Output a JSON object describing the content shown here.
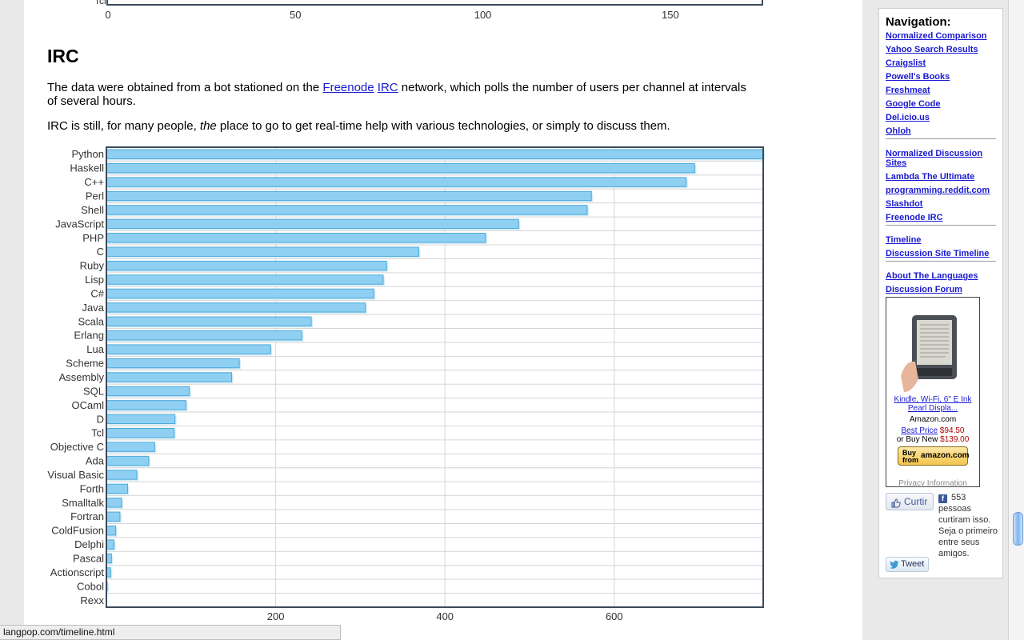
{
  "top_chart": {
    "cut_label": "Tcl",
    "ticks": [
      0,
      50,
      100,
      150
    ],
    "max": 175
  },
  "section": {
    "heading": "IRC",
    "para1_before": "The data were obtained from a bot stationed on the ",
    "link_freenode": "Freenode",
    "link_irc": "IRC",
    "para1_after": " network, which polls the number of users per channel at intervals of several hours.",
    "para2_before": "IRC is still, for many people, ",
    "para2_em": "the",
    "para2_after": " place to go to get real-time help with various technologies, or simply to discuss them."
  },
  "chart_data": {
    "type": "bar",
    "orientation": "horizontal",
    "categories": [
      "Python",
      "Haskell",
      "C++",
      "Perl",
      "Shell",
      "JavaScript",
      "PHP",
      "C",
      "Ruby",
      "Lisp",
      "C#",
      "Java",
      "Scala",
      "Erlang",
      "Lua",
      "Scheme",
      "Assembly",
      "SQL",
      "OCaml",
      "D",
      "Tcl",
      "Objective C",
      "Ada",
      "Visual Basic",
      "Forth",
      "Smalltalk",
      "Fortran",
      "ColdFusion",
      "Delphi",
      "Pascal",
      "Actionscript",
      "Cobol",
      "Rexx"
    ],
    "values": [
      776,
      695,
      685,
      573,
      568,
      487,
      448,
      369,
      331,
      327,
      316,
      306,
      242,
      231,
      194,
      157,
      148,
      98,
      94,
      81,
      80,
      57,
      50,
      36,
      25,
      18,
      16,
      11,
      9,
      6,
      5,
      1,
      0
    ],
    "xticks": [
      200,
      400,
      600
    ],
    "xlim": [
      0,
      776
    ],
    "grid": true,
    "bar_color": "#8fd0f2"
  },
  "sidebar": {
    "title": "Navigation:",
    "group1": [
      "Normalized Comparison",
      "Yahoo Search Results",
      "Craigslist",
      "Powell's Books",
      "Freshmeat",
      "Google Code",
      "Del.icio.us",
      "Ohloh"
    ],
    "group2": [
      "Normalized Discussion Sites",
      "Lambda The Ultimate",
      "programming.reddit.com",
      "Slashdot",
      "Freenode IRC"
    ],
    "group3": [
      "Timeline",
      "Discussion Site Timeline"
    ],
    "group4": [
      "About The Languages",
      "Discussion Forum"
    ]
  },
  "ad": {
    "product_link": "Kindle, Wi-Fi, 6\" E Ink Pearl Displa...",
    "store": "Amazon.com",
    "best_price_label": "Best Price",
    "best_price": "$94.50",
    "buy_new_label": "or Buy New",
    "buy_new_price": "$139.00",
    "buy_button_line1": "Buy",
    "buy_button_line2": "from",
    "buy_button_brand": "amazon.com",
    "privacy": "Privacy Information"
  },
  "social": {
    "like_label": "Curtir",
    "like_text": "553 pessoas curtiram isso. Seja o primeiro entre seus amigos.",
    "tweet_label": "Tweet"
  },
  "status_bar": {
    "url": "langpop.com/timeline.html"
  }
}
